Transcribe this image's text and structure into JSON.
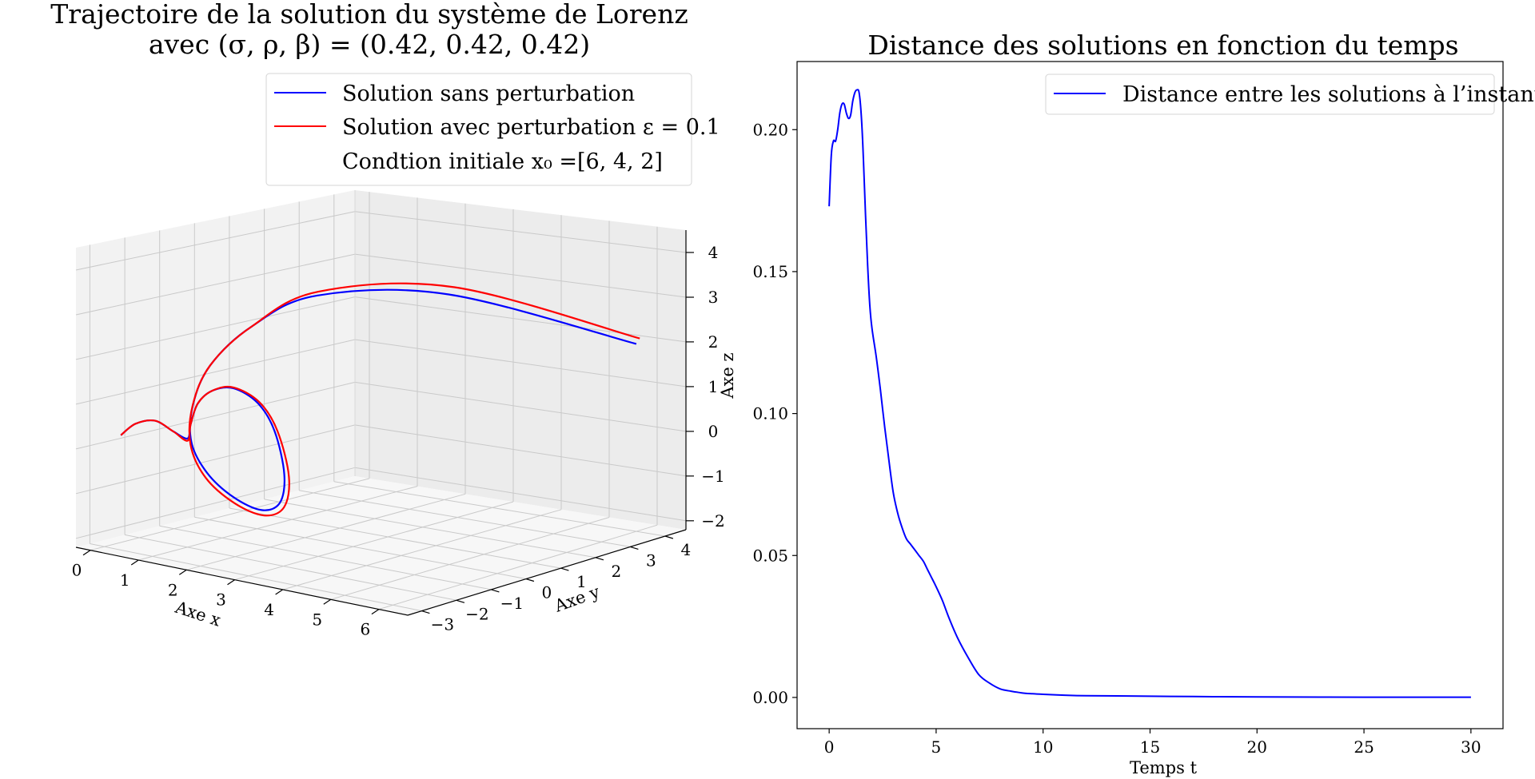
{
  "chart_data": [
    {
      "type": "line3d",
      "title_line1": "Trajectoire de la solution du système de Lorenz",
      "title_line2": "avec (σ, ρ, β) = (0.42, 0.42, 0.42)",
      "xlabel": "Axe x",
      "ylabel": "Axe y",
      "zlabel": "Axe z",
      "xticks": [
        "0",
        "1",
        "2",
        "3",
        "4",
        "5",
        "6"
      ],
      "yticks": [
        "−3",
        "−2",
        "−1",
        "0",
        "1",
        "2",
        "3",
        "4"
      ],
      "zticks": [
        "−2",
        "−1",
        "0",
        "1",
        "2",
        "3",
        "4"
      ],
      "xlim": [
        -0.3,
        6.6
      ],
      "ylim": [
        -3.4,
        4.6
      ],
      "zlim": [
        -2.2,
        4.5
      ],
      "legend": {
        "location": "top-right",
        "entries": [
          {
            "label": "Solution sans perturbation",
            "color": "#0000ff"
          },
          {
            "label": "Solution avec perturbation ε = 0.1",
            "color": "#ff0000"
          },
          {
            "label": "Condtion initiale x₀ =[6, 4, 2]",
            "color": "none"
          }
        ]
      },
      "initial_condition": [
        6,
        4,
        2
      ],
      "epsilon": 0.1,
      "series": [
        {
          "name": "Solution sans perturbation",
          "color": "#0000ff",
          "points": [
            [
              6.0,
              4.0,
              2.0
            ],
            [
              3.65,
              1.85,
              3.2
            ],
            [
              2.25,
              0.0,
              3.3
            ],
            [
              1.9,
              -1.4,
              2.8
            ],
            [
              1.55,
              -2.1,
              2.0
            ],
            [
              1.3,
              -2.25,
              1.1
            ],
            [
              1.12,
              -2.05,
              0.2
            ],
            [
              1.08,
              -1.55,
              -0.6
            ],
            [
              1.2,
              -0.95,
              -1.25
            ],
            [
              1.42,
              -0.45,
              -1.6
            ],
            [
              1.62,
              -0.2,
              -1.45
            ],
            [
              1.7,
              -0.18,
              -0.8
            ],
            [
              1.62,
              -0.35,
              0.2
            ],
            [
              1.45,
              -0.6,
              0.85
            ],
            [
              1.2,
              -0.95,
              1.2
            ],
            [
              0.95,
              -1.2,
              1.15
            ],
            [
              0.75,
              -1.35,
              0.85
            ],
            [
              0.6,
              -1.35,
              0.35
            ],
            [
              0.5,
              -1.3,
              0.0
            ],
            [
              0.42,
              -1.6,
              0.2
            ],
            [
              0.33,
              -2.0,
              0.5
            ],
            [
              0.25,
              -2.45,
              0.5
            ],
            [
              0.2,
              -2.8,
              0.3
            ]
          ]
        },
        {
          "name": "Solution avec perturbation ε = 0.1",
          "color": "#ff0000",
          "points": [
            [
              6.0,
              4.1,
              2.1
            ],
            [
              3.7,
              1.95,
              3.35
            ],
            [
              2.25,
              0.05,
              3.38
            ],
            [
              1.9,
              -1.4,
              2.8
            ],
            [
              1.55,
              -2.1,
              2.0
            ],
            [
              1.33,
              -2.3,
              1.1
            ],
            [
              1.14,
              -2.1,
              0.15
            ],
            [
              1.09,
              -1.6,
              -0.7
            ],
            [
              1.22,
              -0.95,
              -1.38
            ],
            [
              1.45,
              -0.42,
              -1.72
            ],
            [
              1.67,
              -0.15,
              -1.55
            ],
            [
              1.76,
              -0.13,
              -0.85
            ],
            [
              1.66,
              -0.32,
              0.2
            ],
            [
              1.47,
              -0.58,
              0.87
            ],
            [
              1.2,
              -0.95,
              1.22
            ],
            [
              0.95,
              -1.2,
              1.15
            ],
            [
              0.75,
              -1.35,
              0.85
            ],
            [
              0.6,
              -1.35,
              0.35
            ],
            [
              0.5,
              -1.3,
              -0.05
            ],
            [
              0.42,
              -1.6,
              0.2
            ],
            [
              0.33,
              -2.0,
              0.5
            ],
            [
              0.25,
              -2.45,
              0.5
            ],
            [
              0.2,
              -2.8,
              0.3
            ]
          ]
        }
      ]
    },
    {
      "type": "line",
      "title": "Distance des solutions en fonction du temps",
      "xlabel": "Temps t",
      "ylabel": "",
      "xlim": [
        -1.5,
        31.5
      ],
      "ylim": [
        -0.011,
        0.224
      ],
      "xticks": [
        0,
        5,
        10,
        15,
        20,
        25,
        30
      ],
      "xtick_labels": [
        "0",
        "5",
        "10",
        "15",
        "20",
        "25",
        "30"
      ],
      "yticks": [
        0.0,
        0.05,
        0.1,
        0.15,
        0.2
      ],
      "ytick_labels": [
        "0.00",
        "0.05",
        "0.10",
        "0.15",
        "0.20"
      ],
      "legend": {
        "location": "top-right",
        "entries": [
          {
            "label": "Distance entre les solutions à l’instant t",
            "color": "#0000ff"
          }
        ]
      },
      "series": [
        {
          "name": "Distance entre les solutions à l’instant t",
          "color": "#0000ff",
          "x": [
            0,
            0.1,
            0.2,
            0.3,
            0.4,
            0.5,
            0.6,
            0.7,
            0.8,
            0.9,
            1.0,
            1.1,
            1.2,
            1.3,
            1.4,
            1.5,
            1.6,
            1.7,
            1.8,
            1.9,
            2.0,
            2.2,
            2.4,
            2.6,
            2.8,
            3.0,
            3.2,
            3.4,
            3.6,
            3.8,
            4.0,
            4.2,
            4.4,
            4.6,
            4.8,
            5.0,
            5.3,
            5.6,
            6.0,
            6.5,
            7.0,
            7.5,
            8.0,
            8.5,
            9.0,
            9.5,
            10.0,
            11.0,
            12.0,
            14.0,
            17.0,
            20.0,
            25.0,
            30.0
          ],
          "y": [
            0.173,
            0.191,
            0.196,
            0.196,
            0.2,
            0.206,
            0.209,
            0.209,
            0.206,
            0.204,
            0.205,
            0.21,
            0.213,
            0.214,
            0.213,
            0.205,
            0.19,
            0.17,
            0.152,
            0.138,
            0.13,
            0.12,
            0.108,
            0.095,
            0.083,
            0.072,
            0.065,
            0.06,
            0.056,
            0.054,
            0.052,
            0.05,
            0.048,
            0.045,
            0.042,
            0.039,
            0.034,
            0.028,
            0.021,
            0.014,
            0.008,
            0.005,
            0.003,
            0.0022,
            0.0016,
            0.0013,
            0.0011,
            0.0008,
            0.0006,
            0.0005,
            0.0003,
            0.0002,
            0.0001,
            0.0001
          ]
        }
      ]
    }
  ]
}
